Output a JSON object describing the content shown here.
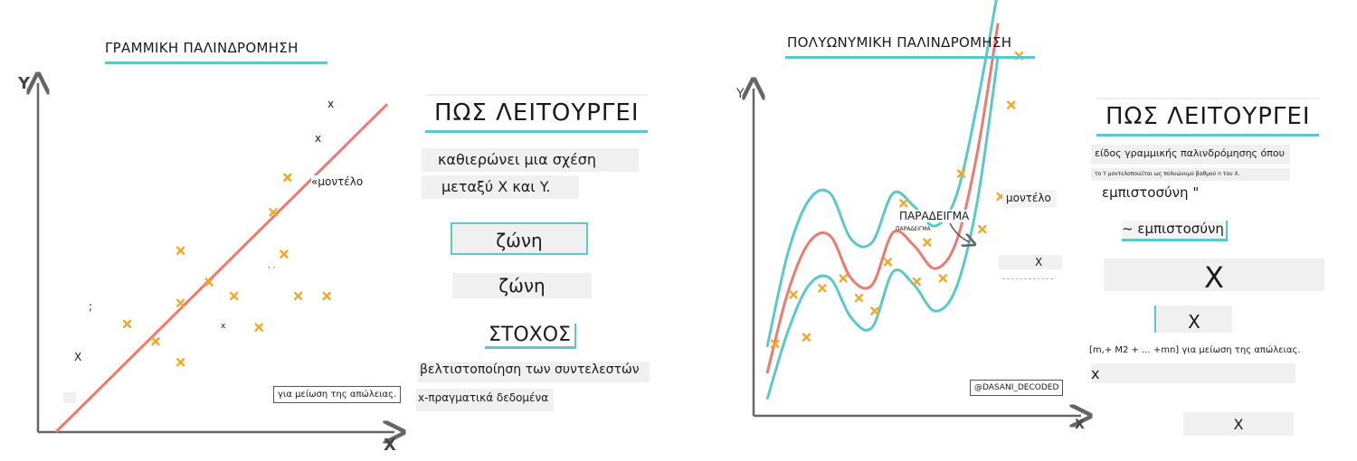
{
  "left_panel": {
    "title": "ΓΡΑΜΜΙΚΗ ΠΑΛΙΝΔΡΟΜΗΣΗ",
    "y_axis_label": "Y",
    "x_axis_label": "X",
    "model_label": "«μοντέλο",
    "loss_note": "για μείωση της απώλειας.",
    "stray_marks": [
      {
        "id": "x1",
        "text": "x"
      },
      {
        "id": "x2",
        "text": "x"
      },
      {
        "id": "x3",
        "text": "x"
      },
      {
        "id": "x4",
        "text": "X"
      },
      {
        "id": "semi",
        "text": ";"
      },
      {
        "id": "dots",
        "text": "· ·"
      }
    ]
  },
  "left_info": {
    "heading": "ΠΩΣ ΛΕΙΤΟΥΡΓΕΙ",
    "description_line1": "καθιερώνει μια σχέση",
    "description_line2": "μεταξύ X και Y.",
    "band_label_1": "ζώνη",
    "band_label_2": "ζώνη",
    "goal_heading": "ΣΤΟΧΟΣ",
    "goal_line1": "βελτιστοποίηση των συντελεστών",
    "goal_line2": "x-πραγματικά δεδομένα"
  },
  "right_panel": {
    "title": "ΠΟΛΥΩΝΥΜΙΚΗ ΠΑΛΙΝΔΡΟΜΗΣΗ",
    "y_axis_label": "Y",
    "x_axis_label": "X",
    "example_label": "ΠΑΡΑΔΕΙΓΜΑ",
    "example_small": "ΠΑΡΑΔΕΙΓΜΑ",
    "model_label": "μοντέλο",
    "x_mark": "X",
    "credit": "@DASANI_DECODED"
  },
  "right_info": {
    "heading": "ΠΩΣ ΛΕΙΤΟΥΡΓΕΙ",
    "description_line1": "είδος γραμμικής παλινδρόμησης όπου",
    "description_line2": "το Y μοντελοποιείται ως πολυώνυμο βαθμού n του X.",
    "confidence_1": "εμπιστοσύνη \"",
    "confidence_2": "~ εμπιστοσύνη",
    "big_x": "X",
    "mid_x": "X",
    "formula": "[m,+ M2 + ... +mn] για μείωση της απώλειας.",
    "small_x": "x",
    "bottom_x": "X"
  },
  "colors": {
    "teal": "#5bc8cc",
    "regression_line": "#ee7a6e",
    "points": "#f5a623",
    "axis": "#666666"
  },
  "chart_data": [
    {
      "type": "scatter",
      "title": "ΓΡΑΜΜΙΚΗ ΠΑΛΙΝΔΡΟΜΗΣΗ",
      "xlabel": "X",
      "ylabel": "Y",
      "xlim": [
        0,
        10
      ],
      "ylim": [
        0,
        10
      ],
      "points": [
        {
          "x": 7.0,
          "y": 7.3
        },
        {
          "x": 6.6,
          "y": 6.3
        },
        {
          "x": 4.0,
          "y": 5.2
        },
        {
          "x": 6.9,
          "y": 5.1
        },
        {
          "x": 4.8,
          "y": 4.3
        },
        {
          "x": 5.5,
          "y": 3.9
        },
        {
          "x": 7.3,
          "y": 3.9
        },
        {
          "x": 8.1,
          "y": 3.9
        },
        {
          "x": 4.0,
          "y": 3.7
        },
        {
          "x": 2.5,
          "y": 3.1
        },
        {
          "x": 3.3,
          "y": 2.6
        },
        {
          "x": 6.2,
          "y": 3.0
        },
        {
          "x": 4.0,
          "y": 2.0
        }
      ],
      "fit_line": {
        "x": [
          0.5,
          9.8
        ],
        "y": [
          0.0,
          9.4
        ]
      }
    },
    {
      "type": "line",
      "title": "ΠΟΛΥΩΝΥΜΙΚΗ ΠΑΛΙΝΔΡΟΜΗΣΗ",
      "xlabel": "X",
      "ylabel": "Y",
      "xlim": [
        0,
        10
      ],
      "ylim": [
        0,
        10
      ],
      "series": [
        {
          "x": [
            0,
            0.8,
            1.6,
            2.4,
            3.2,
            4.0,
            4.8,
            5.6,
            6.4,
            7.2,
            8.0,
            8.8
          ],
          "y": [
            0.5,
            2.6,
            4.0,
            4.2,
            3.0,
            2.7,
            4.4,
            4.0,
            3.2,
            3.9,
            6.5,
            11.0
          ]
        },
        {
          "x": [
            0,
            0.8,
            1.6,
            2.4,
            3.2,
            4.0,
            4.8,
            5.6,
            6.4,
            7.2,
            8.0,
            8.8
          ],
          "y": [
            1.3,
            3.8,
            5.3,
            5.5,
            4.2,
            4.0,
            5.6,
            5.2,
            4.5,
            5.3,
            8.0,
            12.0
          ]
        },
        {
          "x": [
            0,
            0.8,
            1.6,
            2.4,
            3.2,
            4.0,
            4.8,
            5.6,
            6.4,
            7.2,
            8.0,
            8.8
          ],
          "y": [
            2.1,
            5.0,
            6.6,
            6.8,
            5.4,
            5.3,
            6.8,
            6.4,
            5.8,
            6.7,
            9.5,
            13.0
          ]
        }
      ],
      "points": [
        {
          "x": 0.3,
          "y": 2.2
        },
        {
          "x": 1.0,
          "y": 3.7
        },
        {
          "x": 1.5,
          "y": 2.4
        },
        {
          "x": 2.1,
          "y": 3.9
        },
        {
          "x": 2.9,
          "y": 4.2
        },
        {
          "x": 3.5,
          "y": 3.6
        },
        {
          "x": 4.1,
          "y": 3.2
        },
        {
          "x": 4.6,
          "y": 4.7
        },
        {
          "x": 5.2,
          "y": 6.5
        },
        {
          "x": 5.7,
          "y": 4.1
        },
        {
          "x": 6.1,
          "y": 5.3
        },
        {
          "x": 6.7,
          "y": 4.2
        },
        {
          "x": 7.4,
          "y": 7.4
        },
        {
          "x": 8.2,
          "y": 5.7
        },
        {
          "x": 8.9,
          "y": 6.7
        },
        {
          "x": 9.3,
          "y": 9.5
        },
        {
          "x": 9.6,
          "y": 11.0
        }
      ]
    }
  ]
}
